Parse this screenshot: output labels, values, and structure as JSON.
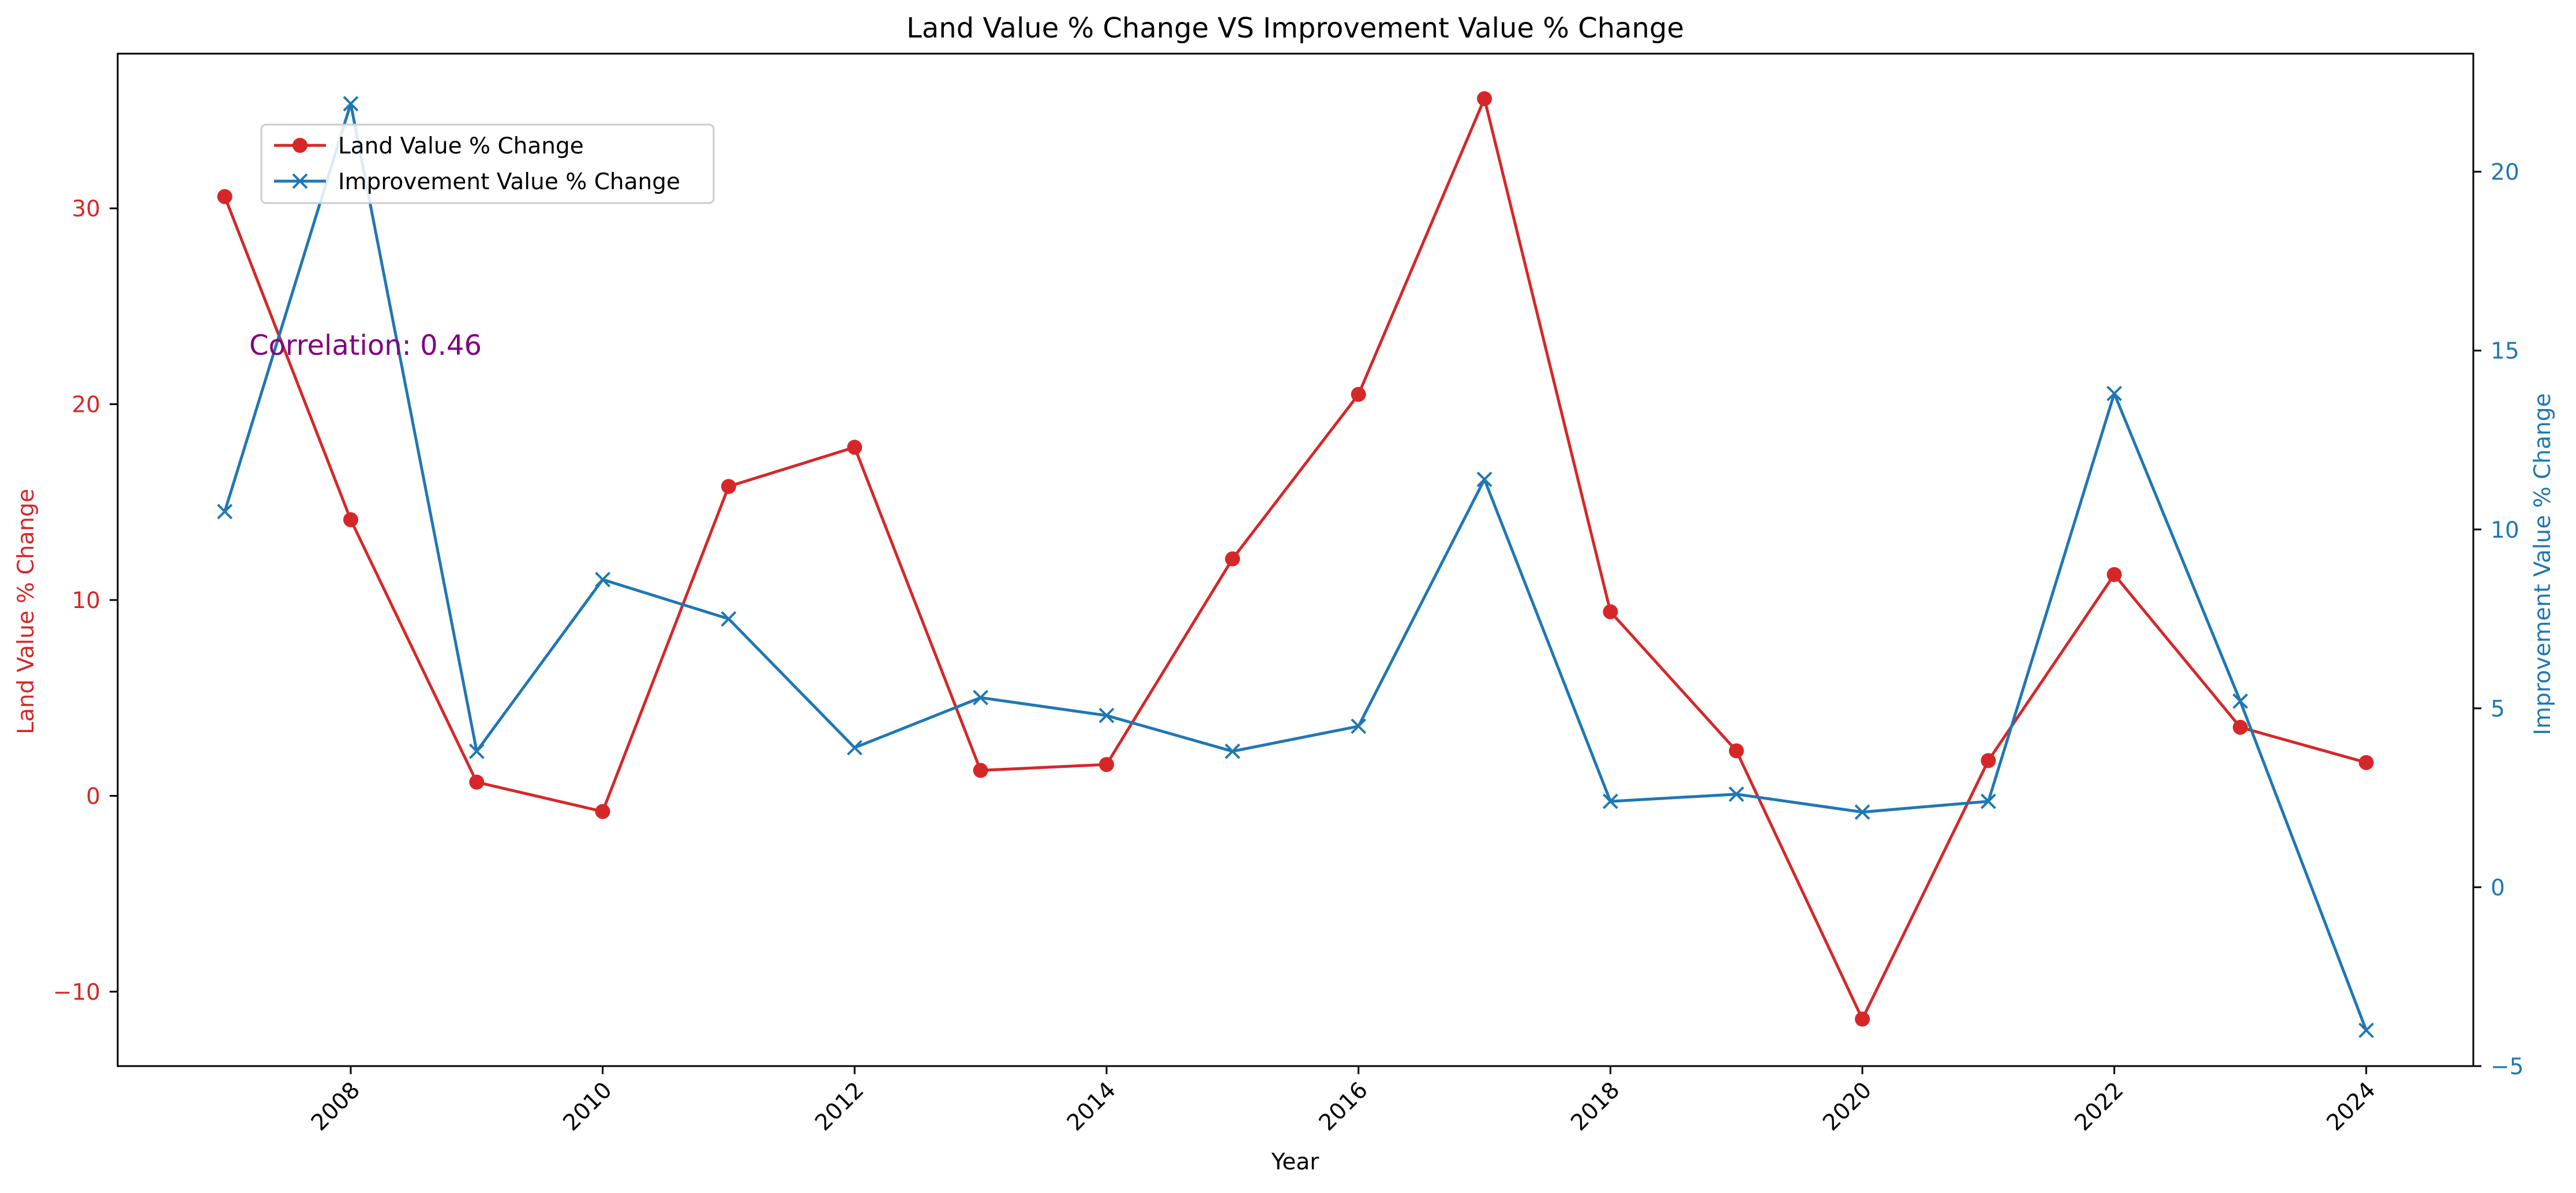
{
  "chart_data": {
    "type": "line",
    "title": "Land Value % Change VS Improvement Value % Change",
    "xlabel": "Year",
    "ylabel_left": "Land Value % Change",
    "ylabel_right": "Improvement Value % Change",
    "annotation": "Correlation: 0.46",
    "x": [
      2007,
      2008,
      2009,
      2010,
      2011,
      2012,
      2013,
      2014,
      2015,
      2016,
      2017,
      2018,
      2019,
      2020,
      2021,
      2022,
      2023,
      2024
    ],
    "xlim": [
      2006.15,
      2024.85
    ],
    "xticks": [
      2008,
      2010,
      2012,
      2014,
      2016,
      2018,
      2020,
      2022,
      2024
    ],
    "left_axis": {
      "ylim": [
        -13.8,
        37.9
      ],
      "ticks": [
        -10,
        0,
        10,
        20,
        30
      ],
      "tick_labels": [
        "−10",
        "0",
        "10",
        "20",
        "30"
      ]
    },
    "right_axis": {
      "ylim": [
        -5.0,
        23.3
      ],
      "ticks": [
        -5,
        0,
        5,
        10,
        15,
        20
      ],
      "tick_labels": [
        "−5",
        "0",
        "5",
        "10",
        "15",
        "20"
      ]
    },
    "series": [
      {
        "name": "Land Value % Change",
        "axis": "left",
        "color": "#d62728",
        "marker": "circle",
        "values": [
          30.6,
          14.1,
          0.7,
          -0.8,
          15.8,
          17.8,
          1.3,
          1.6,
          12.1,
          20.5,
          35.6,
          9.4,
          2.3,
          -11.4,
          1.8,
          11.3,
          3.5,
          1.7
        ]
      },
      {
        "name": "Improvement Value % Change",
        "axis": "right",
        "color": "#1f77b4",
        "marker": "x",
        "values": [
          10.5,
          21.9,
          3.8,
          8.6,
          7.5,
          3.9,
          5.3,
          4.8,
          3.8,
          4.5,
          11.4,
          2.4,
          2.6,
          2.1,
          2.4,
          13.8,
          5.2,
          -4.0
        ]
      }
    ],
    "legend_position": "upper-left",
    "grid": false
  }
}
